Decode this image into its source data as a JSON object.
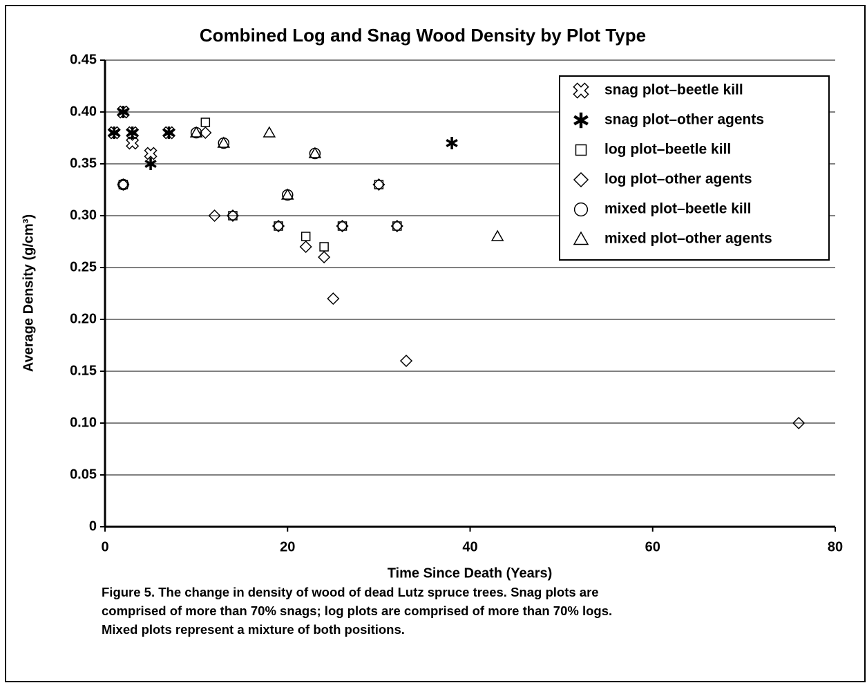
{
  "chart_data": {
    "type": "scatter",
    "title": "Combined Log and Snag Wood Density by Plot Type",
    "x_label": "Time Since Death (Years)",
    "y_label": "Average Density (g/cm³)",
    "xlim": [
      0,
      80
    ],
    "ylim": [
      0,
      0.45
    ],
    "xticks": [
      0,
      20,
      40,
      60,
      80
    ],
    "yticks": [
      0,
      0.05,
      {
        "value": 0.1,
        "label": "0.10"
      },
      0.15,
      {
        "value": 0.2,
        "label": "0.20"
      },
      0.25,
      {
        "value": 0.3,
        "label": "0.30"
      },
      0.35,
      {
        "value": 0.4,
        "label": "0.40"
      },
      0.45
    ],
    "grid": true,
    "legend_position": "upper right",
    "series": [
      {
        "name": "snag plot–beetle kill",
        "color": "#000000",
        "marker": "cross",
        "x": [
          1,
          2,
          3,
          3,
          5,
          7
        ],
        "values": [
          0.38,
          0.4,
          0.37,
          0.38,
          0.36,
          0.38
        ]
      },
      {
        "name": "snag plot–other agents",
        "color": "#000000",
        "marker": "asterisk",
        "x": [
          1,
          2,
          3,
          5,
          7,
          38
        ],
        "values": [
          0.38,
          0.4,
          0.38,
          0.35,
          0.38,
          0.37
        ]
      },
      {
        "name": "log plot–beetle kill",
        "color": "#000000",
        "marker": "square",
        "x": [
          2,
          11,
          14,
          19,
          22,
          24,
          26,
          30,
          32
        ],
        "values": [
          0.33,
          0.39,
          0.3,
          0.29,
          0.28,
          0.27,
          0.29,
          0.33,
          0.29
        ]
      },
      {
        "name": "log plot–other agents",
        "color": "#000000",
        "marker": "diamond",
        "x": [
          2,
          11,
          12,
          14,
          19,
          22,
          24,
          25,
          26,
          30,
          32,
          33,
          76
        ],
        "values": [
          0.33,
          0.38,
          0.3,
          0.3,
          0.29,
          0.27,
          0.26,
          0.22,
          0.29,
          0.33,
          0.29,
          0.16,
          0.1
        ]
      },
      {
        "name": "mixed plot–beetle kill",
        "color": "#000000",
        "marker": "circle",
        "x": [
          2,
          10,
          13,
          20,
          23
        ],
        "values": [
          0.33,
          0.38,
          0.37,
          0.32,
          0.36
        ]
      },
      {
        "name": "mixed plot–other agents",
        "color": "#000000",
        "marker": "triangle",
        "x": [
          10,
          13,
          18,
          20,
          23,
          43
        ],
        "values": [
          0.38,
          0.37,
          0.38,
          0.32,
          0.36,
          0.28
        ]
      }
    ],
    "caption": [
      "Figure 5. The change in density of wood of dead Lutz spruce trees. Snag plots are",
      "comprised of more than 70% snags; log plots are comprised of more than 70% logs.",
      "Mixed plots represent a mixture of both positions."
    ]
  }
}
